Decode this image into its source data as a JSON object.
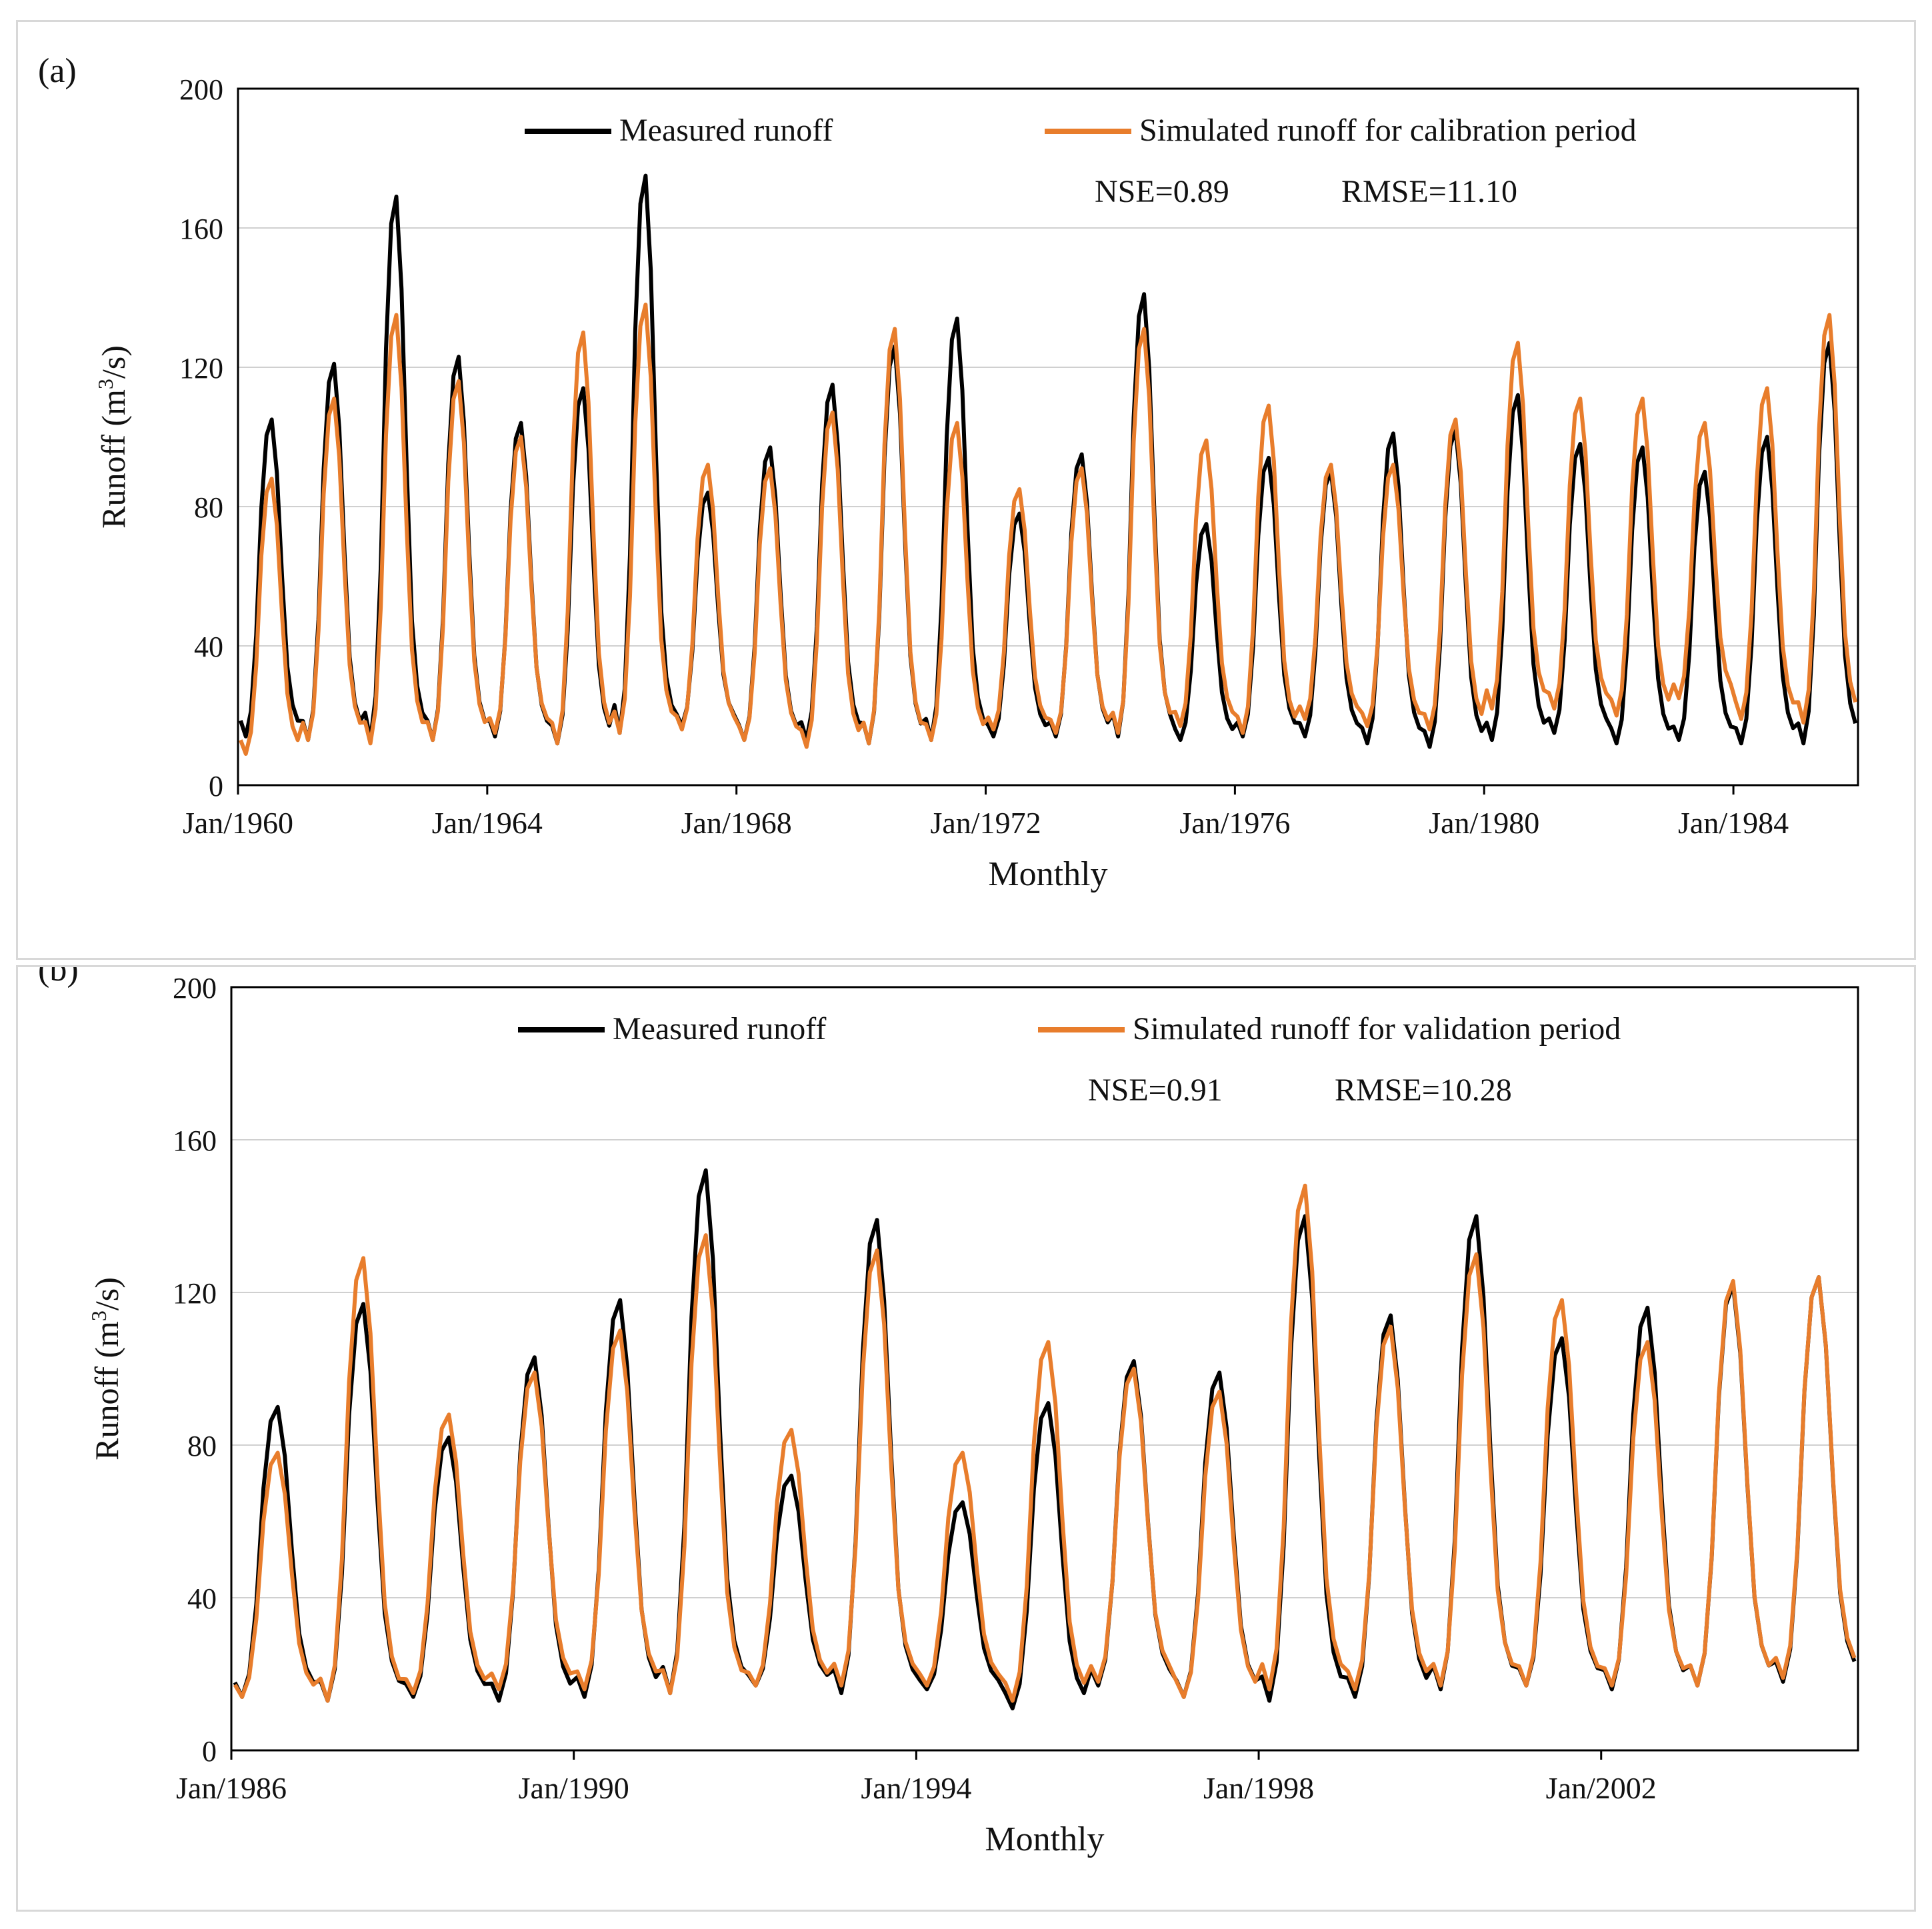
{
  "colors": {
    "measured": "#000000",
    "simulated": "#E87D2C",
    "grid": "#d0d0d0",
    "axis": "#000000"
  },
  "chart_data": [
    {
      "type": "line",
      "panel_label": "(a)",
      "xlabel": "Monthly",
      "ylabel": "Runoff (m³/s)",
      "ylabel_main": "Runoff (m",
      "ylabel_sup": "3",
      "ylabel_tail": "/s)",
      "ylim": [
        0,
        200
      ],
      "yticks": [
        0,
        40,
        80,
        120,
        160,
        200
      ],
      "grid": true,
      "legend_position": "top",
      "x_start": {
        "year": 1960,
        "month": 1
      },
      "x_end_months": 312,
      "xticks": [
        "Jan/1960",
        "Jan/1964",
        "Jan/1968",
        "Jan/1972",
        "Jan/1976",
        "Jan/1980",
        "Jan/1984"
      ],
      "stats": {
        "nse": "NSE=0.89",
        "rmse": "RMSE=11.10"
      },
      "series": [
        {
          "name": "Measured runoff",
          "peaks": [
            105,
            121,
            169,
            123,
            104,
            114,
            175,
            84,
            97,
            115,
            126,
            134,
            78,
            95,
            141,
            75,
            94,
            90,
            101,
            102,
            112,
            98,
            97,
            90,
            100,
            127
          ],
          "lows": [
            14,
            13,
            13,
            13,
            14,
            12,
            15,
            17,
            13,
            13,
            12,
            13,
            14,
            14,
            14,
            13,
            14,
            14,
            12,
            11,
            13,
            15,
            12,
            13,
            12,
            12
          ]
        },
        {
          "name": "Simulated runoff for calibration period",
          "peaks": [
            88,
            111,
            135,
            116,
            100,
            130,
            138,
            92,
            91,
            107,
            131,
            104,
            85,
            91,
            131,
            99,
            109,
            92,
            92,
            105,
            127,
            111,
            111,
            104,
            114,
            135
          ],
          "lows": [
            9,
            13,
            12,
            13,
            15,
            12,
            15,
            16,
            13,
            11,
            12,
            13,
            16,
            15,
            15,
            17,
            15,
            19,
            17,
            16,
            22,
            22,
            20,
            25,
            19,
            18
          ]
        }
      ]
    },
    {
      "type": "line",
      "panel_label": "(b)",
      "xlabel": "Monthly",
      "ylabel": "Runoff (m³/s)",
      "ylabel_main": "Runoff (m",
      "ylabel_sup": "3",
      "ylabel_tail": "/s)",
      "ylim": [
        0,
        200
      ],
      "yticks": [
        0,
        40,
        80,
        120,
        160,
        200
      ],
      "grid": true,
      "legend_position": "top",
      "x_start": {
        "year": 1986,
        "month": 1
      },
      "x_end_months": 228,
      "xticks": [
        "Jan/1986",
        "Jan/1990",
        "Jan/1994",
        "Jan/1998",
        "Jan/2002"
      ],
      "stats": {
        "nse": "NSE=0.91",
        "rmse": "RMSE=10.28"
      },
      "series": [
        {
          "name": "Measured runoff",
          "peaks": [
            90,
            117,
            82,
            103,
            118,
            152,
            72,
            139,
            65,
            91,
            102,
            99,
            140,
            114,
            140,
            108,
            116,
            122,
            124
          ],
          "lows": [
            14,
            13,
            14,
            13,
            14,
            15,
            17,
            15,
            16,
            11,
            17,
            14,
            13,
            14,
            16,
            17,
            16,
            17,
            18
          ]
        },
        {
          "name": "Simulated runoff for validation  period",
          "peaks": [
            78,
            129,
            88,
            99,
            110,
            135,
            84,
            131,
            78,
            107,
            100,
            94,
            148,
            111,
            130,
            118,
            107,
            123,
            124
          ],
          "lows": [
            14,
            13,
            15,
            16,
            16,
            15,
            17,
            17,
            17,
            13,
            18,
            14,
            16,
            16,
            17,
            17,
            17,
            17,
            19
          ]
        }
      ]
    }
  ]
}
